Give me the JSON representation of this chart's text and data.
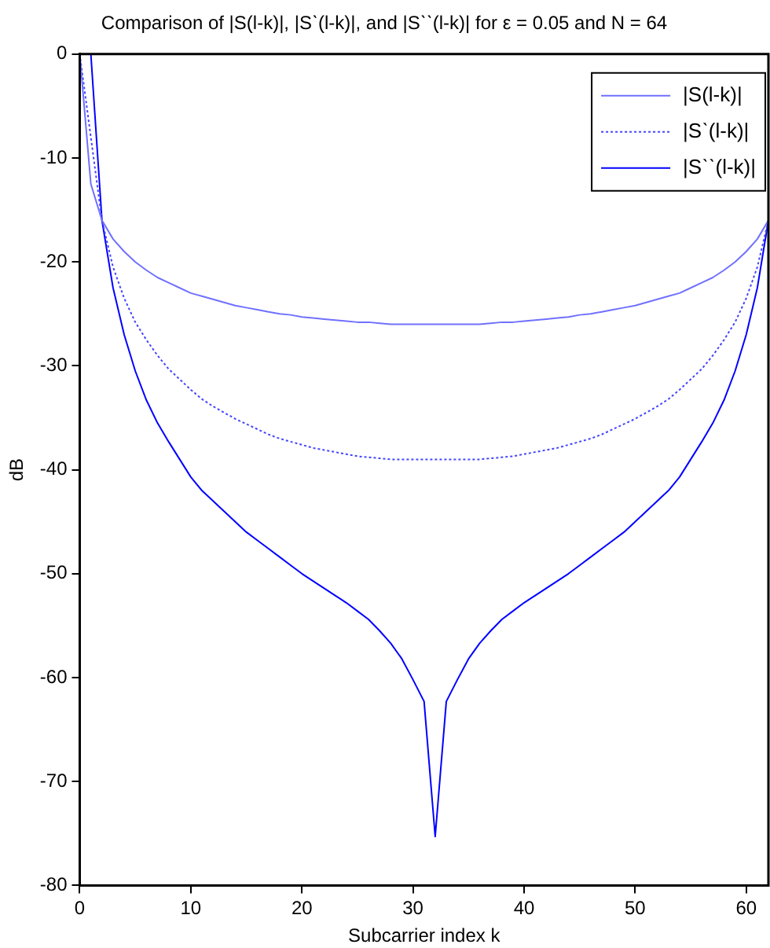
{
  "chart_data": {
    "type": "line",
    "title": "Comparison of |S(l-k)|, |Sˋ(l-k)|, and |Sˋˋ(l-k)| for ε = 0.05 and N = 64",
    "xlabel": "Subcarrier index k",
    "ylabel": "dB",
    "x": [
      0,
      1,
      2,
      3,
      4,
      5,
      6,
      7,
      8,
      9,
      10,
      11,
      12,
      13,
      14,
      15,
      16,
      17,
      18,
      19,
      20,
      21,
      22,
      23,
      24,
      25,
      26,
      27,
      28,
      29,
      30,
      31,
      32,
      33,
      34,
      35,
      36,
      37,
      38,
      39,
      40,
      41,
      42,
      43,
      44,
      45,
      46,
      47,
      48,
      49,
      50,
      51,
      52,
      53,
      54,
      55,
      56,
      57,
      58,
      59,
      60,
      61,
      62
    ],
    "series": [
      {
        "name": "|S(l-k)|",
        "color": "#7070ff",
        "line_style": "solid",
        "values": [
          0,
          -12.5,
          -16,
          -17.8,
          -19,
          -20,
          -20.8,
          -21.5,
          -22,
          -22.5,
          -23,
          -23.3,
          -23.6,
          -23.9,
          -24.2,
          -24.4,
          -24.6,
          -24.8,
          -25,
          -25.1,
          -25.3,
          -25.4,
          -25.5,
          -25.6,
          -25.7,
          -25.8,
          -25.8,
          -25.9,
          -26,
          -26,
          -26,
          -26,
          -26,
          -26,
          -26,
          -26,
          -26,
          -25.9,
          -25.8,
          -25.8,
          -25.7,
          -25.6,
          -25.5,
          -25.4,
          -25.3,
          -25.1,
          -25,
          -24.8,
          -24.6,
          -24.4,
          -24.2,
          -23.9,
          -23.6,
          -23.3,
          -23,
          -22.5,
          -22,
          -21.5,
          -20.8,
          -20,
          -19,
          -17.8,
          -16
        ]
      },
      {
        "name": "|Sˋ(l-k)|",
        "color": "#4545ff",
        "line_style": "dotted",
        "values": [
          0,
          -8,
          -16,
          -20.5,
          -23.5,
          -25.8,
          -27.5,
          -29,
          -30.3,
          -31.3,
          -32.3,
          -33.2,
          -33.9,
          -34.5,
          -35.1,
          -35.6,
          -36.1,
          -36.6,
          -37,
          -37.3,
          -37.6,
          -37.9,
          -38.1,
          -38.3,
          -38.5,
          -38.7,
          -38.8,
          -38.9,
          -39,
          -39,
          -39,
          -39,
          -39,
          -39,
          -39,
          -39,
          -39,
          -38.9,
          -38.8,
          -38.7,
          -38.5,
          -38.3,
          -38.1,
          -37.9,
          -37.6,
          -37.3,
          -37,
          -36.6,
          -36.1,
          -35.6,
          -35.1,
          -34.5,
          -33.9,
          -33.2,
          -32.3,
          -31.3,
          -30.3,
          -29,
          -27.5,
          -25.8,
          -23.5,
          -20.5,
          -16
        ]
      },
      {
        "name": "|Sˋˋ(l-k)|",
        "color": "#0000ff",
        "line_style": "solid",
        "values": [
          0,
          0,
          -16,
          -22.5,
          -27,
          -30.5,
          -33.3,
          -35.5,
          -37.3,
          -39,
          -40.7,
          -42,
          -43,
          -44,
          -45,
          -46,
          -46.8,
          -47.6,
          -48.4,
          -49.2,
          -50,
          -50.7,
          -51.4,
          -52.1,
          -52.8,
          -53.6,
          -54.4,
          -55.5,
          -56.7,
          -58.2,
          -60.2,
          -62.3,
          -75.3,
          -62.3,
          -60.2,
          -58.2,
          -56.7,
          -55.5,
          -54.4,
          -53.6,
          -52.8,
          -52.1,
          -51.4,
          -50.7,
          -50,
          -49.2,
          -48.4,
          -47.6,
          -46.8,
          -46,
          -45,
          -44,
          -43,
          -42,
          -40.7,
          -39,
          -37.3,
          -35.5,
          -33.3,
          -30.5,
          -27,
          -22.5,
          -16
        ]
      }
    ],
    "xlim": [
      0,
      62
    ],
    "xticks": [
      0,
      10,
      20,
      30,
      40,
      50,
      60
    ],
    "ylim": [
      -80,
      0
    ],
    "yticks": [
      0,
      -10,
      -20,
      -30,
      -40,
      -50,
      -60,
      -70,
      -80
    ],
    "grid": false,
    "legend": "top right",
    "marker": "none"
  }
}
